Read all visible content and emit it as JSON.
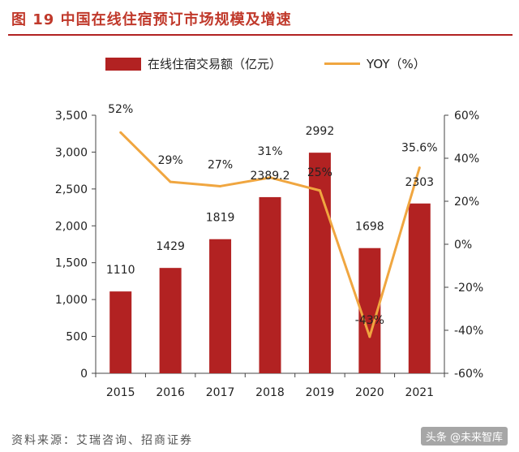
{
  "title": "图 19  中国在线住宿预订市场规模及增速",
  "source": "资料来源：艾瑞咨询、招商证券",
  "watermark": "头条 @未来智库",
  "colors": {
    "bar": "#b22222",
    "line": "#f0a640",
    "title": "#c0392b"
  },
  "chart_data": {
    "type": "bar",
    "categories": [
      "2015",
      "2016",
      "2017",
      "2018",
      "2019",
      "2020",
      "2021"
    ],
    "series": [
      {
        "name": "在线住宿交易额（亿元）",
        "type": "bar",
        "axis": "left",
        "values": [
          1110,
          1429,
          1819,
          2389.2,
          2992,
          1698,
          2303
        ],
        "labels": [
          "1110",
          "1429",
          "1819",
          "2389.2",
          "2992",
          "1698",
          "2303"
        ]
      },
      {
        "name": "YOY（%）",
        "type": "line",
        "axis": "right",
        "values": [
          52,
          29,
          27,
          31,
          25,
          -43,
          35.6
        ],
        "labels": [
          "52%",
          "29%",
          "27%",
          "31%",
          "25%",
          "-43%",
          "35.6%"
        ]
      }
    ],
    "y_left": {
      "min": 0,
      "max": 3500,
      "ticks": [
        0,
        500,
        1000,
        1500,
        2000,
        2500,
        3000,
        3500
      ],
      "tick_labels": [
        "0",
        "500",
        "1,000",
        "1,500",
        "2,000",
        "2,500",
        "3,000",
        "3,500"
      ]
    },
    "y_right": {
      "min": -60,
      "max": 60,
      "ticks": [
        -60,
        -40,
        -20,
        0,
        20,
        40,
        60
      ],
      "tick_labels": [
        "-60%",
        "-40%",
        "-20%",
        "0%",
        "20%",
        "40%",
        "60%"
      ]
    },
    "legend_position": "top",
    "grid": false
  }
}
